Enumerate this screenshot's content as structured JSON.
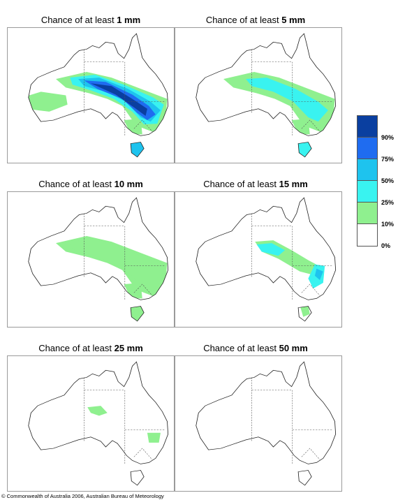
{
  "panels": [
    {
      "prefix": "Chance of at least ",
      "amount": "1 mm",
      "intensity": 5
    },
    {
      "prefix": "Chance of at least ",
      "amount": "5 mm",
      "intensity": 4
    },
    {
      "prefix": "Chance of at least ",
      "amount": "10 mm",
      "intensity": 3
    },
    {
      "prefix": "Chance of at least ",
      "amount": "15 mm",
      "intensity": 2
    },
    {
      "prefix": "Chance of at least ",
      "amount": "25 mm",
      "intensity": 1
    },
    {
      "prefix": "Chance of at least ",
      "amount": "50 mm",
      "intensity": 0
    }
  ],
  "legend": {
    "colors": [
      "#0a3fa0",
      "#1f6cf0",
      "#1ec3ee",
      "#39f3f0",
      "#8ff08f",
      "#ffffff"
    ],
    "labels": [
      "90%",
      "75%",
      "50%",
      "25%",
      "10%",
      "0%"
    ]
  },
  "copyright": "© Commonwealth of Australia 2006, Australian Bureau of Meteorology"
}
